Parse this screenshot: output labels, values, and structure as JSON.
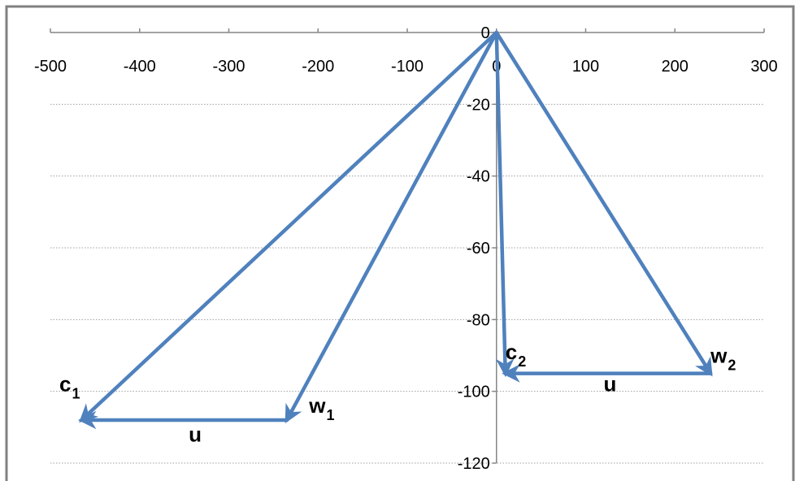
{
  "chart_data": {
    "type": "line",
    "title": "",
    "xlabel": "",
    "ylabel": "",
    "xlim": [
      -500,
      300
    ],
    "ylim": [
      -120,
      0
    ],
    "x_ticks": [
      "-500",
      "-400",
      "-300",
      "-200",
      "-100",
      "0",
      "100",
      "200",
      "300"
    ],
    "y_ticks": [
      "0",
      "-20",
      "-40",
      "-60",
      "-80",
      "-100",
      "-120"
    ],
    "grid": "horizontal dotted",
    "legend": "none",
    "colors": {
      "series": "#4f81bd",
      "grid": "#a0a0a0",
      "axis": "#868686"
    },
    "vectors": [
      {
        "name": "c1",
        "from": [
          0,
          0
        ],
        "to": [
          -465,
          -108
        ]
      },
      {
        "name": "w1",
        "from": [
          0,
          0
        ],
        "to": [
          -235,
          -108
        ]
      },
      {
        "name": "u",
        "from": [
          -235,
          -108
        ],
        "to": [
          -465,
          -108
        ]
      },
      {
        "name": "c2",
        "from": [
          0,
          0
        ],
        "to": [
          10,
          -95
        ]
      },
      {
        "name": "w2",
        "from": [
          0,
          0
        ],
        "to": [
          240,
          -95
        ]
      },
      {
        "name": "u",
        "from": [
          240,
          -95
        ],
        "to": [
          10,
          -95
        ]
      }
    ],
    "annotations": [
      {
        "base": "c",
        "sub": "1",
        "x": -490,
        "y": -100
      },
      {
        "base": "w",
        "sub": "1",
        "x": -210,
        "y": -106
      },
      {
        "base": "u",
        "sub": "",
        "x": -345,
        "y": -114
      },
      {
        "base": "c",
        "sub": "2",
        "x": 10,
        "y": -91
      },
      {
        "base": "w",
        "sub": "2",
        "x": 240,
        "y": -92
      },
      {
        "base": "u",
        "sub": "",
        "x": 120,
        "y": -100
      }
    ]
  }
}
